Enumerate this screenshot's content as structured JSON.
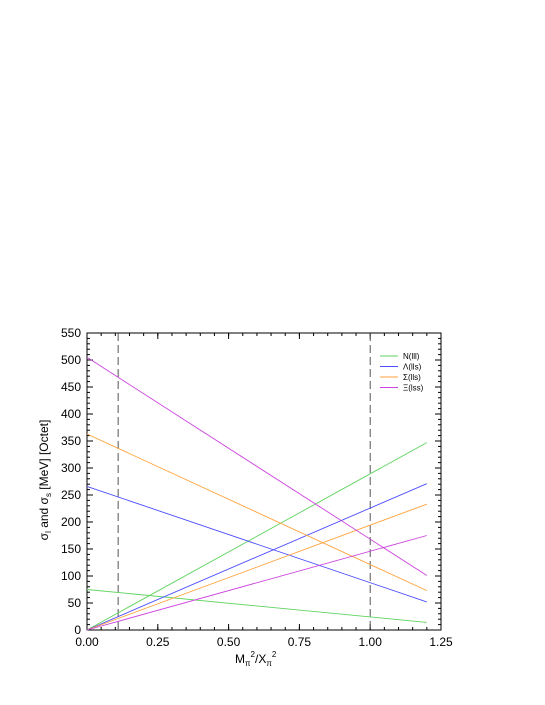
{
  "chart_data": {
    "type": "line",
    "xlabel": {
      "base": "M",
      "sub1": "π",
      "sup1": "2",
      "mid": "/X",
      "sub2": "π",
      "sup2": "2"
    },
    "ylabel": {
      "s1": "σ",
      "sub1": "l",
      "mid": " and ",
      "s2": "σ",
      "sub2": "s",
      "rest": " [MeV]  [Octet]"
    },
    "xlim": [
      0,
      1.25
    ],
    "ylim": [
      0,
      550
    ],
    "x_ticks": [
      0.0,
      0.25,
      0.5,
      0.75,
      1.0,
      1.25
    ],
    "x_tick_labels": [
      "0.00",
      "0.25",
      "0.50",
      "0.75",
      "1.00",
      "1.25"
    ],
    "y_ticks": [
      0,
      50,
      100,
      150,
      200,
      250,
      300,
      350,
      400,
      450,
      500,
      550
    ],
    "y_tick_labels": [
      "0",
      "50",
      "100",
      "150",
      "200",
      "250",
      "300",
      "350",
      "400",
      "450",
      "500",
      "550"
    ],
    "vlines": [
      0.11,
      1.0
    ],
    "legend_position": "top-right",
    "series": [
      {
        "name": "N(lll)",
        "color": "#5fd35f",
        "sigma_l": [
          [
            0,
            0
          ],
          [
            1.2,
            347
          ]
        ],
        "sigma_s": [
          [
            0,
            75
          ],
          [
            1.2,
            14
          ]
        ]
      },
      {
        "name": "Λ(lls)",
        "color": "#4d4dff",
        "sigma_l": [
          [
            0,
            0
          ],
          [
            1.2,
            271
          ]
        ],
        "sigma_s": [
          [
            0,
            266
          ],
          [
            1.2,
            52
          ]
        ]
      },
      {
        "name": "Σ(lls)",
        "color": "#ffa23c",
        "sigma_l": [
          [
            0,
            0
          ],
          [
            1.2,
            233
          ]
        ],
        "sigma_s": [
          [
            0,
            363
          ],
          [
            1.2,
            73
          ]
        ]
      },
      {
        "name": "Ξ(lss)",
        "color": "#cc44dd",
        "sigma_l": [
          [
            0,
            0
          ],
          [
            1.2,
            175
          ]
        ],
        "sigma_s": [
          [
            0,
            505
          ],
          [
            1.2,
            101
          ]
        ]
      }
    ]
  }
}
